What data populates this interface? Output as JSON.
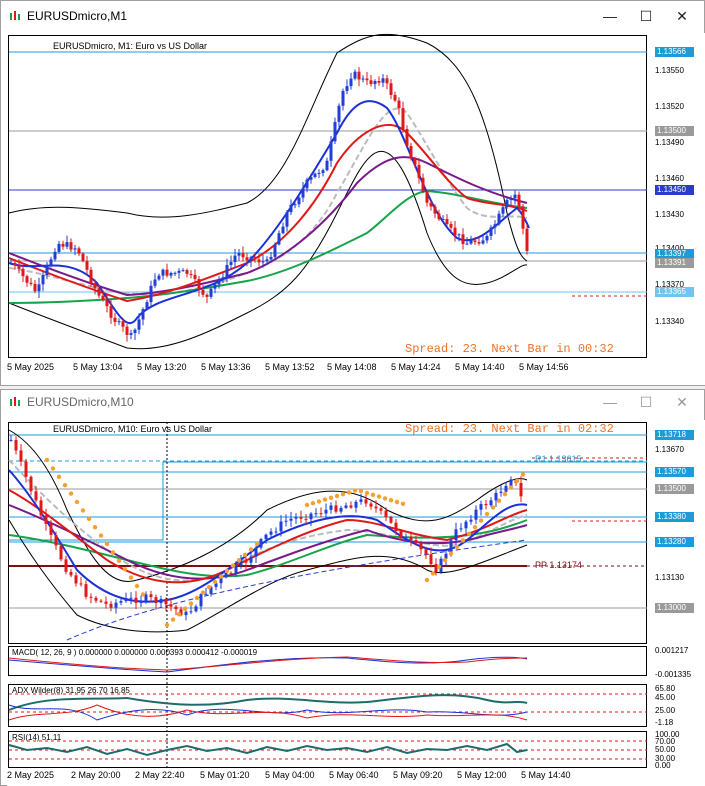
{
  "window1": {
    "title": "EURUSDmicro,M1",
    "chart_title": "EURUSDmicro, M1:  Euro vs US Dollar",
    "spread_text": "Spread: 23. Next Bar in 00:32",
    "price_labels": [
      "1.13550",
      "1.13520",
      "1.13490",
      "1.13460",
      "1.13430",
      "1.13400",
      "1.13370",
      "1.13340"
    ],
    "tags": {
      "t1": "1.13566",
      "t2": "1.13500",
      "t3": "1.13450",
      "t4": "1.13397",
      "t5": "1.13391",
      "t6": "1.13365"
    },
    "time_labels": [
      "5 May 2025",
      "5 May 13:04",
      "5 May 13:20",
      "5 May 13:36",
      "5 May 13:52",
      "5 May 14:08",
      "5 May 14:24",
      "5 May 14:40",
      "5 May 14:56"
    ]
  },
  "window2": {
    "title": "EURUSDmicro,M10",
    "chart_title": "EURUSDmicro, M10:  Euro vs US Dollar",
    "spread_text": "Spread: 23. Next Bar in 02:32",
    "r1_label": "R1 1.13615",
    "pp_label": "PP 1.13174",
    "price_labels": [
      "1.13670",
      "1.13130"
    ],
    "tags": {
      "t1": "1.13718",
      "t2": "1.13570",
      "t3": "1.13500",
      "t4": "1.13380",
      "t5": "1.13280",
      "t6": "1.13000"
    },
    "macd": {
      "label": "MACD( 12, 26, 9 ) 0.000000 0.000000 0.000393 0.000412 -0.000019",
      "v1": "0.001217",
      "v2": "-0.001335"
    },
    "adx": {
      "label": "ADX Wilder(8) 31.95 26.70 16.85",
      "v1": "65.80",
      "v2": "45.00",
      "v3": "25.00",
      "v4": "-1.18"
    },
    "rsi": {
      "label": "RSI(14) 51.11",
      "v1": "100.00",
      "v2": "70.00",
      "v3": "50.00",
      "v4": "30.00",
      "v5": "0.00"
    },
    "time_labels": [
      "2 May 2025",
      "2 May 20:00",
      "2 May 22:40",
      "5 May 01:20",
      "5 May 04:00",
      "5 May 06:40",
      "5 May 09:20",
      "5 May 12:00",
      "5 May 14:40"
    ]
  },
  "colors": {
    "bull": "#1f3fd8",
    "bear": "#e01818",
    "tag_blue": "#1c9bd8",
    "tag_gray": "#9a9a9a",
    "tag_nav": "#2a3cc8",
    "spread": "#e8722a",
    "pp": "#7a1010",
    "dots": "#f7a030"
  },
  "icons": {
    "app": "chart-app-icon",
    "min": "minimize-icon",
    "max": "maximize-icon",
    "close": "close-icon"
  }
}
